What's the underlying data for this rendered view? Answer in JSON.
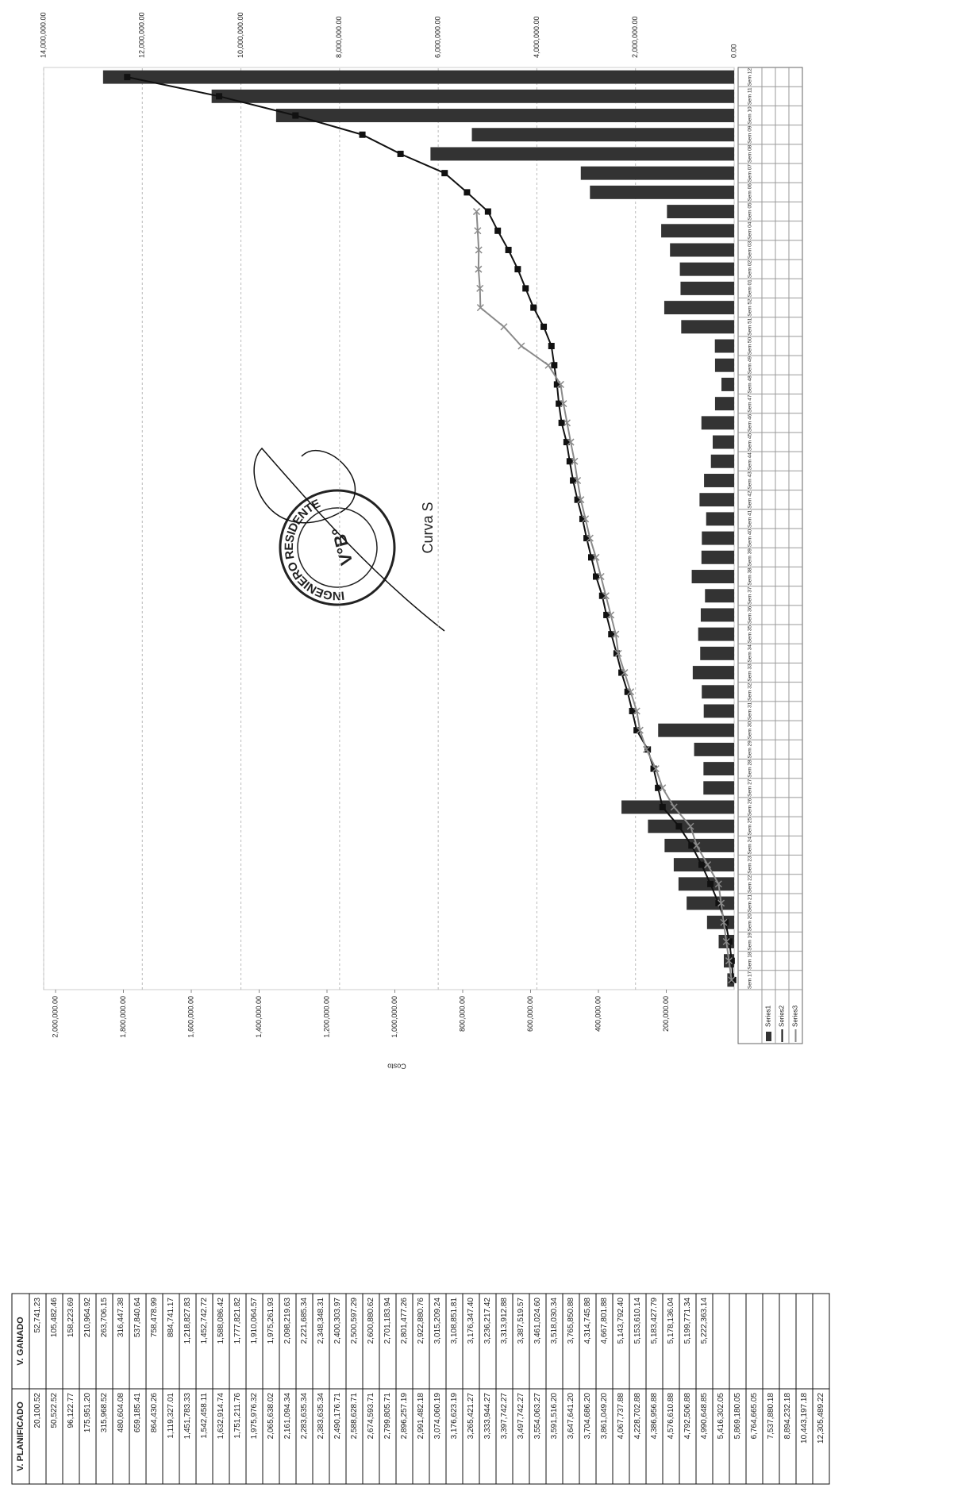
{
  "chart_data": {
    "type": "bar-line",
    "title": "Curva S",
    "y_label": "Costo",
    "categories": [
      "Sem 17",
      "Sem 18",
      "Sem 19",
      "Sem 20",
      "Sem 21",
      "Sem 22",
      "Sem 23",
      "Sem 24",
      "Sem 25",
      "Sem 26",
      "Sem 27",
      "Sem 28",
      "Sem 29",
      "Sem 30",
      "Sem 31",
      "Sem 32",
      "Sem 33",
      "Sem 34",
      "Sem 35",
      "Sem 36",
      "Sem 37",
      "Sem 38",
      "Sem 39",
      "Sem 40",
      "Sem 41",
      "Sem 42",
      "Sem 43",
      "Sem 44",
      "Sem 45",
      "Sem 46",
      "Sem 47",
      "Sem 48",
      "Sem 49",
      "Sem 50",
      "Sem 51",
      "Sem 52",
      "Sem 01",
      "Sem 02",
      "Sem 03",
      "Sem 04",
      "Sem 05",
      "Sem 06",
      "Sem 07",
      "Sem 08",
      "Sem 09",
      "Sem 10",
      "Sem 11",
      "Sem 12"
    ],
    "series": [
      {
        "name": "Series1",
        "color": "#333333",
        "kind": "bar",
        "axis": "y",
        "values": [
          20100,
          30400,
          45600,
          79900,
          140000,
          164000,
          178000,
          205000,
          254000,
          332000,
          90600,
          90400,
          118000,
          224000,
          89600,
          95400,
          122000,
          100000,
          106000,
          98400,
          85900,
          125000,
          96400,
          95200,
          82500,
          102000,
          88700,
          68500,
          63200,
          96500,
          56300,
          37400,
          56300,
          56800,
          156000,
          206000,
          158000,
          160000,
          189000,
          215000,
          198000,
          425000,
          452000,
          895000,
          773000,
          1350000,
          1540000,
          1860000
        ]
      },
      {
        "name": "Series2",
        "color": "#111111",
        "kind": "line",
        "marker": "square",
        "axis": "y2",
        "values": [
          20100.52,
          50522.52,
          96122.77,
          175951.2,
          315968.52,
          480604.08,
          659185.41,
          864430.26,
          1119327.01,
          1451783.33,
          1542458.11,
          1632914.74,
          1751211.76,
          1975976.32,
          2065638.02,
          2161094.34,
          2283635.34,
          2383635.34,
          2490176.71,
          2588628.71,
          2674593.71,
          2799805.71,
          2896257.19,
          2991482.18,
          3074060.19,
          3176623.19,
          3265421.27,
          3333944.27,
          3397742.27,
          3497742.27,
          3554063.27,
          3591516.2,
          3647641.2,
          3704686.2,
          3861049.2,
          4067737.88,
          4228702.88,
          4386956.88,
          4576610.88,
          4792506.88,
          4990648.85,
          5416302.05,
          5869180.05,
          6764665.05,
          7537880.18,
          8894232.18,
          10443197.18,
          12305489.22
        ]
      },
      {
        "name": "Series3",
        "color": "#8a8a8a",
        "kind": "line",
        "marker": "cross",
        "axis": "y2",
        "values": [
          52741.23,
          105482.46,
          158223.69,
          210964.92,
          263706.15,
          316447.38,
          537840.64,
          758478.99,
          884741.17,
          1218827.83,
          1452742.72,
          1588086.42,
          1777821.82,
          1910064.57,
          1975261.93,
          2098219.63,
          2221685.34,
          2348348.31,
          2400303.97,
          2500597.29,
          2600880.62,
          2701183.94,
          2801477.26,
          2922880.76,
          3015209.24,
          3108851.81,
          3176347.4,
          3236217.42,
          3313912.88,
          3387519.57,
          3461024.6,
          3518030.34,
          3765850.88,
          4314745.88,
          4667801.88,
          5143792.4,
          5153610.14,
          5183427.79,
          5178136.04,
          5199771.34,
          5222363.14,
          null,
          null,
          null,
          null,
          null,
          null,
          null
        ]
      }
    ],
    "ylim": [
      0,
      2000000
    ],
    "yticks": [
      {
        "value": 200000,
        "label": "200,000.00"
      },
      {
        "value": 400000,
        "label": "400,000.00"
      },
      {
        "value": 600000,
        "label": "600,000.00"
      },
      {
        "value": 800000,
        "label": "800,000.00"
      },
      {
        "value": 1000000,
        "label": "1,000,000.00"
      },
      {
        "value": 1200000,
        "label": "1,200,000.00"
      },
      {
        "value": 1400000,
        "label": "1,400,000.00"
      },
      {
        "value": 1600000,
        "label": "1,600,000.00"
      },
      {
        "value": 1800000,
        "label": "1,800,000.00"
      },
      {
        "value": 2000000,
        "label": "2,000,000.00"
      }
    ],
    "y2lim": [
      0,
      14000000
    ],
    "y2ticks": [
      {
        "value": 0,
        "label": "0.00"
      },
      {
        "value": 2000000,
        "label": "2,000,000.00"
      },
      {
        "value": 4000000,
        "label": "4,000,000.00"
      },
      {
        "value": 6000000,
        "label": "6,000,000.00"
      },
      {
        "value": 8000000,
        "label": "8,000,000.00"
      },
      {
        "value": 10000000,
        "label": "10,000,000.00"
      },
      {
        "value": 12000000,
        "label": "12,000,000.00"
      },
      {
        "value": 14000000,
        "label": "14,000,000.00"
      }
    ],
    "grid": true
  },
  "table": {
    "headers": [
      "V. PLANIFICADO",
      "V. GANADO"
    ],
    "rows": [
      [
        "20,100.52",
        "52,741.23"
      ],
      [
        "50,522.52",
        "105,482.46"
      ],
      [
        "96,122.77",
        "158,223.69"
      ],
      [
        "175,951.20",
        "210,964.92"
      ],
      [
        "315,968.52",
        "263,706.15"
      ],
      [
        "480,604.08",
        "316,447.38"
      ],
      [
        "659,185.41",
        "537,840.64"
      ],
      [
        "864,430.26",
        "758,478.99"
      ],
      [
        "1,119,327.01",
        "884,741.17"
      ],
      [
        "1,451,783.33",
        "1,218,827.83"
      ],
      [
        "1,542,458.11",
        "1,452,742.72"
      ],
      [
        "1,632,914.74",
        "1,588,086.42"
      ],
      [
        "1,751,211.76",
        "1,777,821.82"
      ],
      [
        "1,975,976.32",
        "1,910,064.57"
      ],
      [
        "2,065,638.02",
        "1,975,261.93"
      ],
      [
        "2,161,094.34",
        "2,098,219.63"
      ],
      [
        "2,283,635.34",
        "2,221,685.34"
      ],
      [
        "2,383,635.34",
        "2,348,348.31"
      ],
      [
        "2,490,176.71",
        "2,400,303.97"
      ],
      [
        "2,588,628.71",
        "2,500,597.29"
      ],
      [
        "2,674,593.71",
        "2,600,880.62"
      ],
      [
        "2,799,805.71",
        "2,701,183.94"
      ],
      [
        "2,896,257.19",
        "2,801,477.26"
      ],
      [
        "2,991,482.18",
        "2,922,880.76"
      ],
      [
        "3,074,060.19",
        "3,015,209.24"
      ],
      [
        "3,176,623.19",
        "3,108,851.81"
      ],
      [
        "3,265,421.27",
        "3,176,347.40"
      ],
      [
        "3,333,944.27",
        "3,236,217.42"
      ],
      [
        "3,397,742.27",
        "3,313,912.88"
      ],
      [
        "3,497,742.27",
        "3,387,519.57"
      ],
      [
        "3,554,063.27",
        "3,461,024.60"
      ],
      [
        "3,591,516.20",
        "3,518,030.34"
      ],
      [
        "3,647,641.20",
        "3,765,850.88"
      ],
      [
        "3,704,686.20",
        "4,314,745.88"
      ],
      [
        "3,861,049.20",
        "4,667,801.88"
      ],
      [
        "4,067,737.88",
        "5,143,792.40"
      ],
      [
        "4,228,702.88",
        "5,153,610.14"
      ],
      [
        "4,386,956.88",
        "5,183,427.79"
      ],
      [
        "4,576,610.88",
        "5,178,136.04"
      ],
      [
        "4,792,506.88",
        "5,199,771.34"
      ],
      [
        "4,990,648.85",
        "5,222,363.14"
      ],
      [
        "5,416,302.05",
        null
      ],
      [
        "5,869,180.05",
        null
      ],
      [
        "6,764,665.05",
        null
      ],
      [
        "7,537,880.18",
        null
      ],
      [
        "8,894,232.18",
        null
      ],
      [
        "10,443,197.18",
        null
      ],
      [
        "12,305,489.22",
        null
      ]
    ]
  },
  "stamp": {
    "text": "INGENIERO RESIDENTE",
    "mark": "V°B°"
  }
}
